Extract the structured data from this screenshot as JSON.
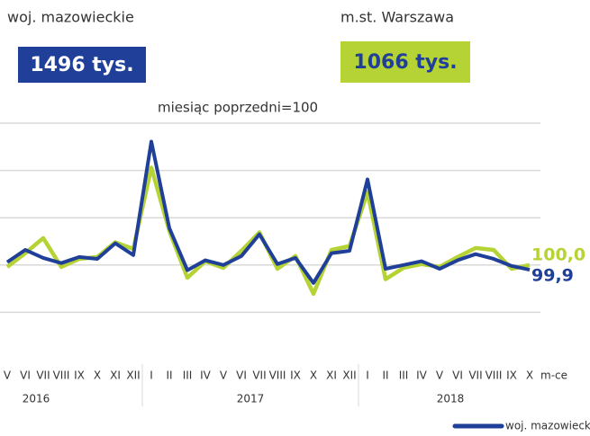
{
  "header": {
    "panels": [
      {
        "label": "woj. mazowieckie",
        "value": "1496 tys.",
        "color": "#1f3f99",
        "text_color": "#ffffff"
      },
      {
        "label": "m.st. Warszawa",
        "value": "1066 tys.",
        "color": "#b5d334",
        "text_color": "#1f3f99"
      }
    ]
  },
  "chart_data": {
    "type": "line",
    "subtitle": "miesiąc poprzedni=100",
    "categories": [
      "V",
      "VI",
      "VII",
      "VIII",
      "IX",
      "X",
      "XI",
      "XII",
      "I",
      "II",
      "III",
      "IV",
      "V",
      "VI",
      "VII",
      "VIII",
      "IX",
      "X",
      "XI",
      "XII",
      "I",
      "II",
      "III",
      "IV",
      "V",
      "VI",
      "VII",
      "VIII",
      "IX",
      "X"
    ],
    "year_labels": [
      "2016",
      "2017",
      "2018"
    ],
    "x_label": "m-ce",
    "series": [
      {
        "name": "m.st. Warszawa",
        "color": "#b5d334",
        "values": [
          99.96,
          100.25,
          100.57,
          99.96,
          100.13,
          100.17,
          100.48,
          100.34,
          102.06,
          100.72,
          99.73,
          100.08,
          99.94,
          100.3,
          100.69,
          99.92,
          100.19,
          99.39,
          100.32,
          100.4,
          101.54,
          99.7,
          99.94,
          100.02,
          99.96,
          100.17,
          100.36,
          100.32,
          99.92,
          100.0
        ],
        "value_labels": [
          null,
          null,
          null,
          null,
          null,
          null,
          null,
          null,
          null,
          null,
          null,
          null,
          null,
          null,
          null,
          null,
          null,
          null,
          null,
          null,
          null,
          null,
          null,
          null,
          null,
          null,
          null,
          null,
          null,
          "100,0"
        ]
      },
      {
        "name": "woj. mazowieckie",
        "color": "#1f3f99",
        "values": [
          100.06,
          100.32,
          100.15,
          100.04,
          100.17,
          100.13,
          100.46,
          100.21,
          102.61,
          100.78,
          99.89,
          100.1,
          100.0,
          100.19,
          100.65,
          100.02,
          100.15,
          99.62,
          100.25,
          100.3,
          101.81,
          99.92,
          100.0,
          100.08,
          99.92,
          100.1,
          100.23,
          100.13,
          99.98,
          99.9
        ],
        "value_labels": [
          null,
          null,
          null,
          null,
          null,
          null,
          null,
          null,
          null,
          null,
          null,
          null,
          null,
          null,
          null,
          null,
          null,
          null,
          null,
          null,
          null,
          null,
          null,
          null,
          null,
          null,
          null,
          null,
          null,
          "99,9"
        ]
      }
    ],
    "ylim": [
      98,
      103
    ],
    "yticks": [
      99,
      100,
      101,
      102,
      103
    ],
    "grid": true
  }
}
